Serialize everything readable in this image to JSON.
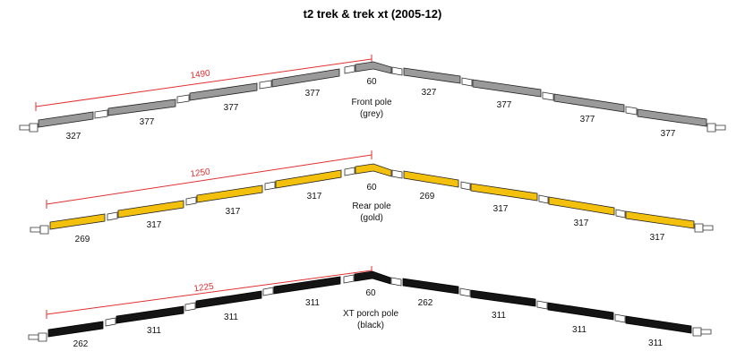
{
  "title": "t2 trek & trek xt (2005-12)",
  "poles": [
    {
      "caption_line1": "Front pole",
      "caption_line2": "(grey)",
      "color": "#9a9a9a",
      "top_label": "60",
      "dimension": "1490",
      "left_labels": [
        "327",
        "377",
        "377",
        "377"
      ],
      "right_labels": [
        "327",
        "377",
        "377",
        "377"
      ]
    },
    {
      "caption_line1": "Rear pole",
      "caption_line2": "(gold)",
      "color": "#f3c10d",
      "top_label": "60",
      "dimension": "1250",
      "left_labels": [
        "269",
        "317",
        "317",
        "317"
      ],
      "right_labels": [
        "269",
        "317",
        "317",
        "317"
      ]
    },
    {
      "caption_line1": "XT porch pole",
      "caption_line2": "(black)",
      "color": "#141414",
      "top_label": "60",
      "dimension": "1225",
      "left_labels": [
        "262",
        "311",
        "311",
        "311"
      ],
      "right_labels": [
        "262",
        "311",
        "311",
        "311"
      ]
    }
  ]
}
